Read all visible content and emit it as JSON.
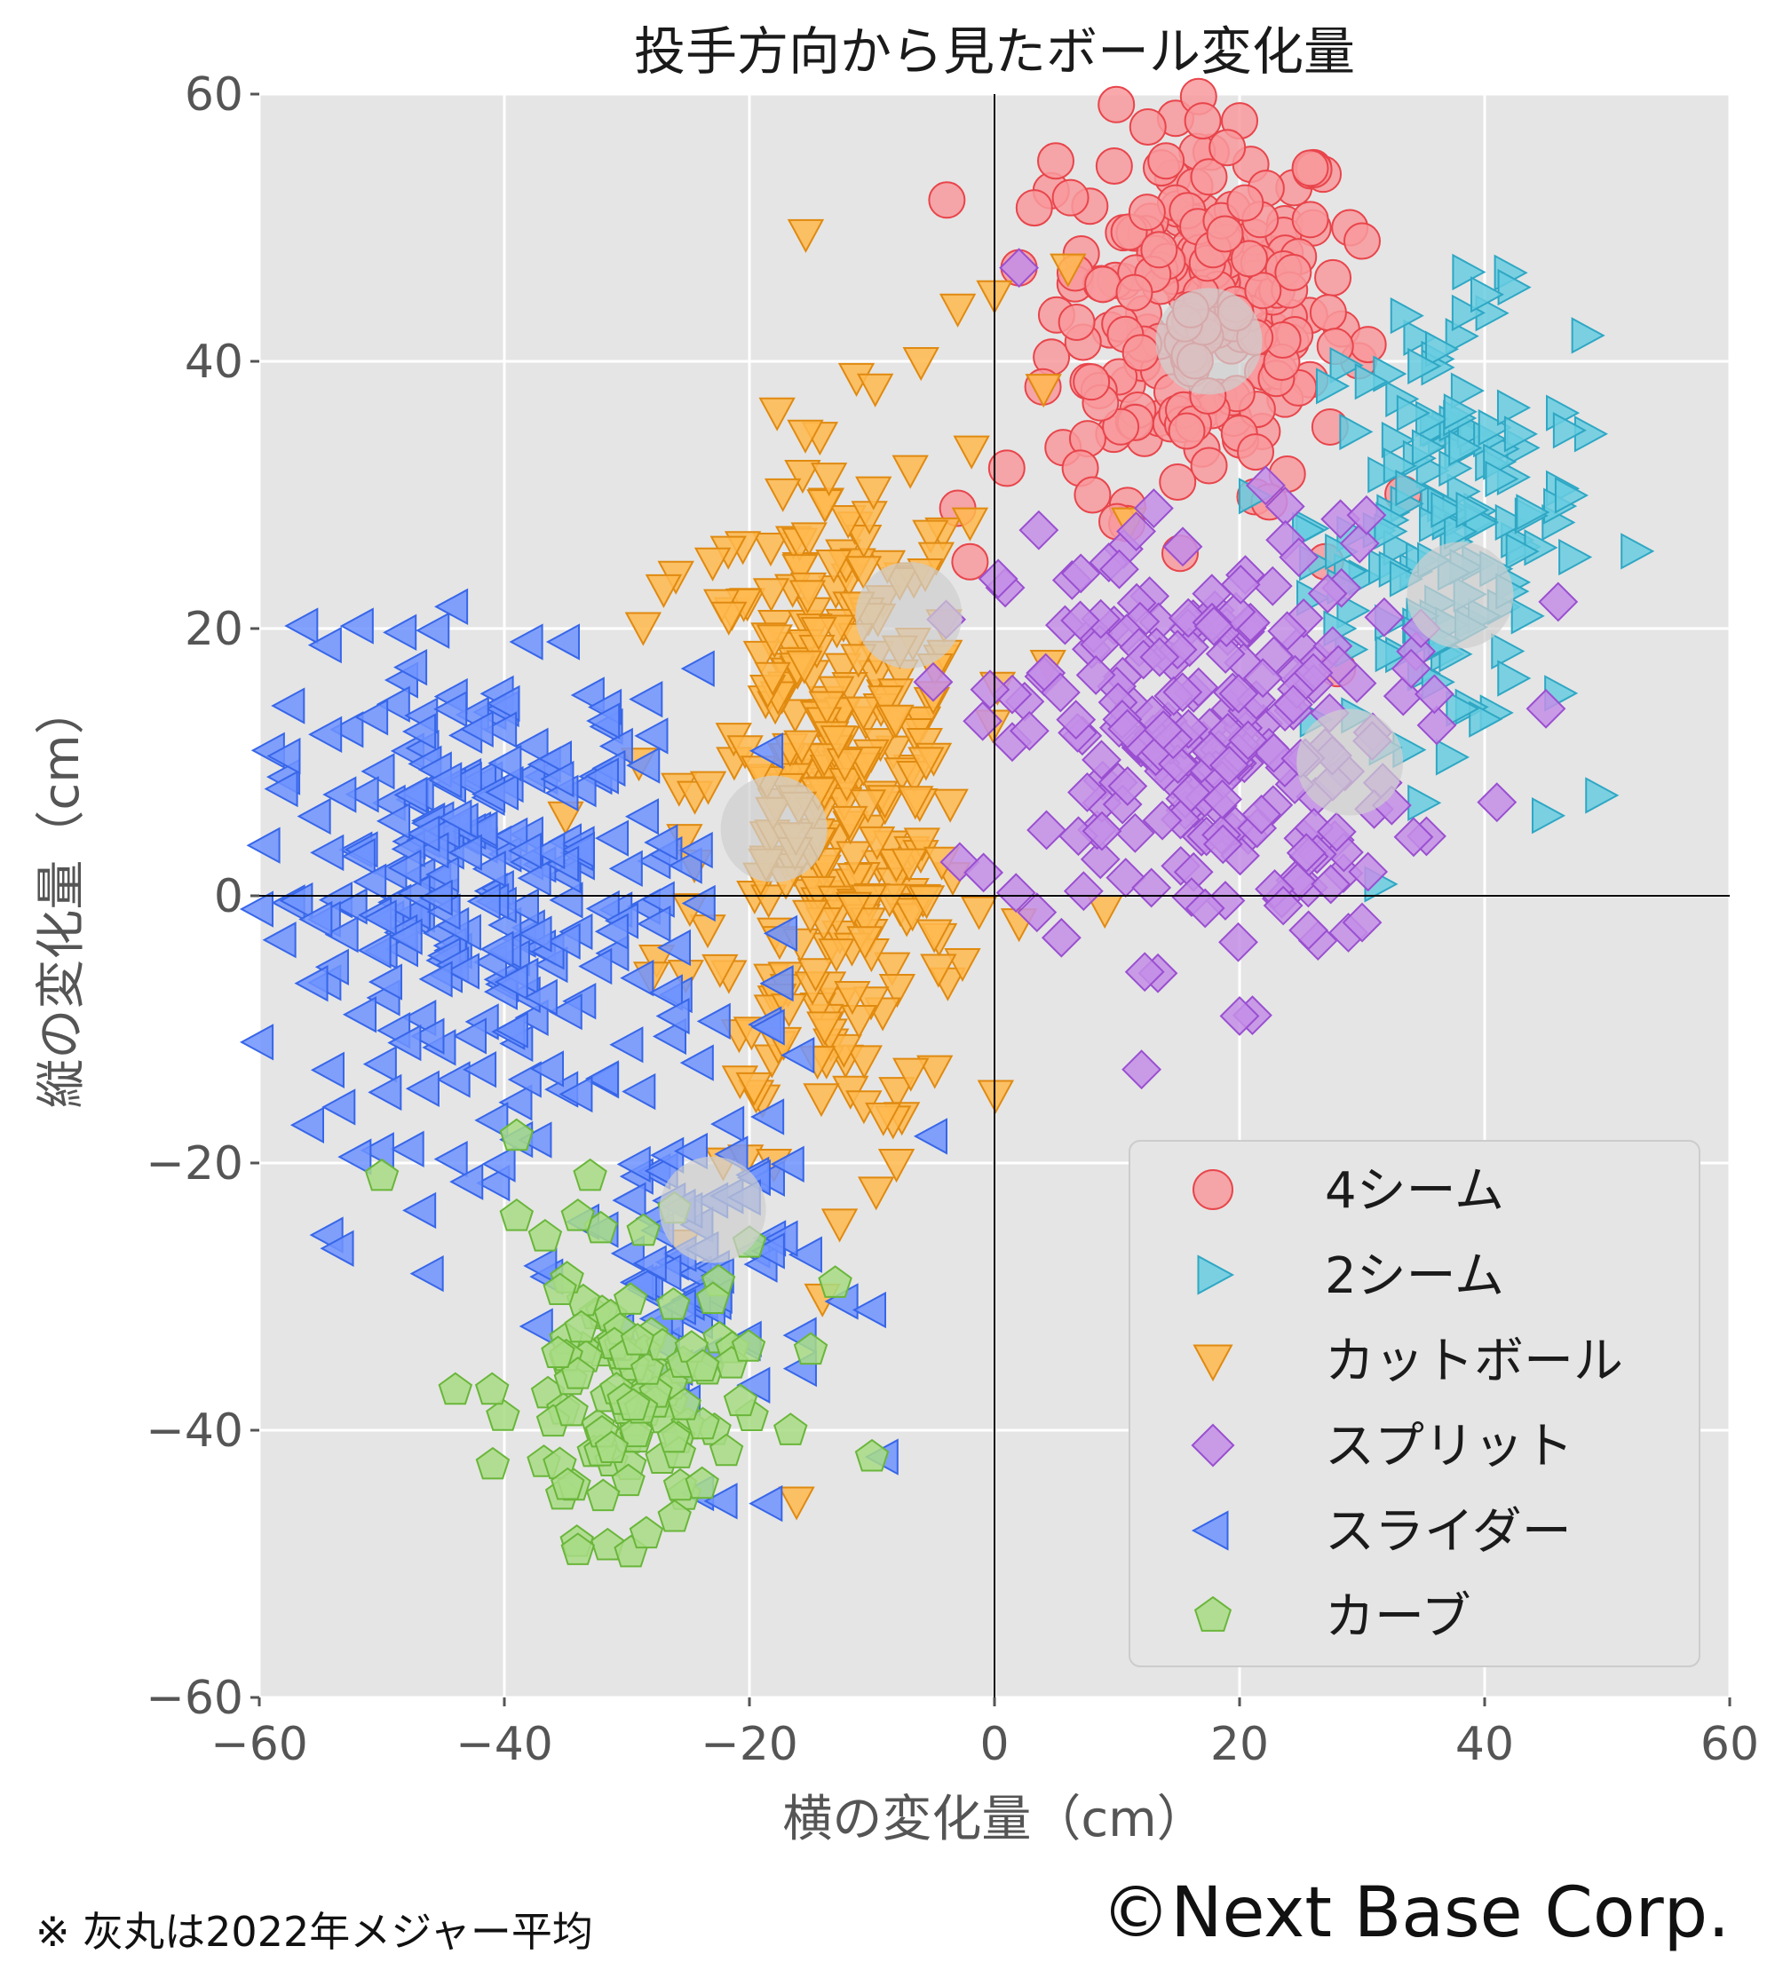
{
  "chart_data": {
    "type": "scatter",
    "title": "投手方向から見たボール変化量",
    "xlabel": "横の変化量（cm）",
    "ylabel": "縦の変化量（cm）",
    "xlim": [
      -60,
      60
    ],
    "ylim": [
      -60,
      60
    ],
    "xticks": [
      "−60",
      "−40",
      "−20",
      "0",
      "20",
      "40",
      "60"
    ],
    "yticks": [
      "60",
      "40",
      "20",
      "0",
      "−20",
      "−40",
      "−60"
    ],
    "grid": true,
    "legend_position": "bottom-right",
    "series": [
      {
        "name": "4シーム",
        "marker": "circle",
        "color": "#f8999c",
        "edge": "#e8454b",
        "cluster": {
          "cx": 17,
          "cy": 44,
          "sx": 6,
          "sy": 7,
          "n": 210
        },
        "extra": [
          [
            -3,
            29
          ],
          [
            -2,
            25
          ],
          [
            1,
            32
          ],
          [
            7,
            32
          ],
          [
            8,
            30
          ],
          [
            10,
            28
          ],
          [
            17,
            58
          ],
          [
            20,
            58
          ],
          [
            19,
            56
          ],
          [
            14,
            55
          ],
          [
            5,
            55
          ],
          [
            2,
            47
          ],
          [
            29,
            50
          ],
          [
            30,
            49
          ],
          [
            28,
            17
          ],
          [
            27,
            25
          ]
        ]
      },
      {
        "name": "2シーム",
        "marker": "triangle-right",
        "color": "#67cde0",
        "edge": "#2fa7c4",
        "cluster": {
          "cx": 37,
          "cy": 28,
          "sx": 5.5,
          "sy": 8,
          "n": 150
        },
        "extra": [
          [
            40,
            45
          ],
          [
            45,
            6
          ],
          [
            28,
            20
          ],
          [
            36,
            16
          ],
          [
            38,
            14
          ]
        ]
      },
      {
        "name": "カットボール",
        "marker": "triangle-down",
        "color": "#ffb84d",
        "edge": "#e08a10",
        "cluster": {
          "cx": -13,
          "cy": 7,
          "sx": 5.5,
          "sy": 13,
          "n": 340
        },
        "extra": [
          [
            -3,
            44
          ],
          [
            -6,
            40
          ],
          [
            0,
            45
          ],
          [
            4,
            38
          ],
          [
            -23,
            25
          ],
          [
            -26,
            24
          ],
          [
            -27,
            23
          ],
          [
            -35,
            6
          ],
          [
            -28,
            -6
          ],
          [
            -8,
            -20
          ],
          [
            -18,
            -20
          ],
          [
            2,
            -2
          ],
          [
            9,
            -1
          ],
          [
            11,
            28
          ],
          [
            6,
            47
          ],
          [
            -5,
            15
          ],
          [
            -2,
            28
          ]
        ]
      },
      {
        "name": "スプリット",
        "marker": "diamond",
        "color": "#c48ee8",
        "edge": "#9a4fd0",
        "cluster": {
          "cx": 17,
          "cy": 12,
          "sx": 8,
          "sy": 8,
          "n": 240
        },
        "extra": [
          [
            2,
            47
          ],
          [
            12,
            -13
          ],
          [
            20,
            -9
          ],
          [
            13,
            29
          ],
          [
            41,
            7
          ],
          [
            45,
            14
          ],
          [
            46,
            22
          ],
          [
            30,
            -2
          ],
          [
            34,
            17
          ],
          [
            -5,
            16
          ]
        ]
      },
      {
        "name": "スライダー",
        "marker": "triangle-left",
        "color": "#6f93ff",
        "edge": "#3766e8",
        "cluster": {
          "cx": -42,
          "cy": 0,
          "sx": 9,
          "sy": 9,
          "n": 270
        },
        "cluster2": {
          "cx": -24,
          "cy": -28,
          "sx": 5,
          "sy": 7,
          "n": 80
        },
        "extra": [
          [
            -58,
            8
          ],
          [
            -35,
            19
          ],
          [
            -38,
            19
          ],
          [
            -24,
            17
          ],
          [
            -5,
            -18
          ],
          [
            -10,
            -31
          ],
          [
            -9,
            -42
          ],
          [
            -60,
            -1
          ]
        ]
      },
      {
        "name": "カーブ",
        "marker": "pentagon",
        "color": "#a8dc85",
        "edge": "#6ab63a",
        "cluster": {
          "cx": -30,
          "cy": -38,
          "sx": 4.5,
          "sy": 5,
          "n": 110
        },
        "extra": [
          [
            -50,
            -21
          ],
          [
            -39,
            -18
          ],
          [
            -33,
            -21
          ],
          [
            -39,
            -24
          ],
          [
            -34,
            -24
          ],
          [
            -41,
            -37
          ],
          [
            -44,
            -37
          ],
          [
            -34,
            -49
          ],
          [
            -13,
            -29
          ],
          [
            -10,
            -42
          ],
          [
            -20,
            -26
          ],
          [
            -15,
            -34
          ]
        ]
      }
    ],
    "averages": [
      [
        17.5,
        41.5
      ],
      [
        38,
        22.5
      ],
      [
        -18,
        5
      ],
      [
        29,
        10
      ],
      [
        -23,
        -23.5
      ],
      [
        -7,
        21
      ]
    ],
    "avg_color": "#cfcfcf"
  },
  "footer": {
    "note": "※ 灰丸は2022年メジャー平均",
    "copyright": "©Next Base Corp."
  }
}
